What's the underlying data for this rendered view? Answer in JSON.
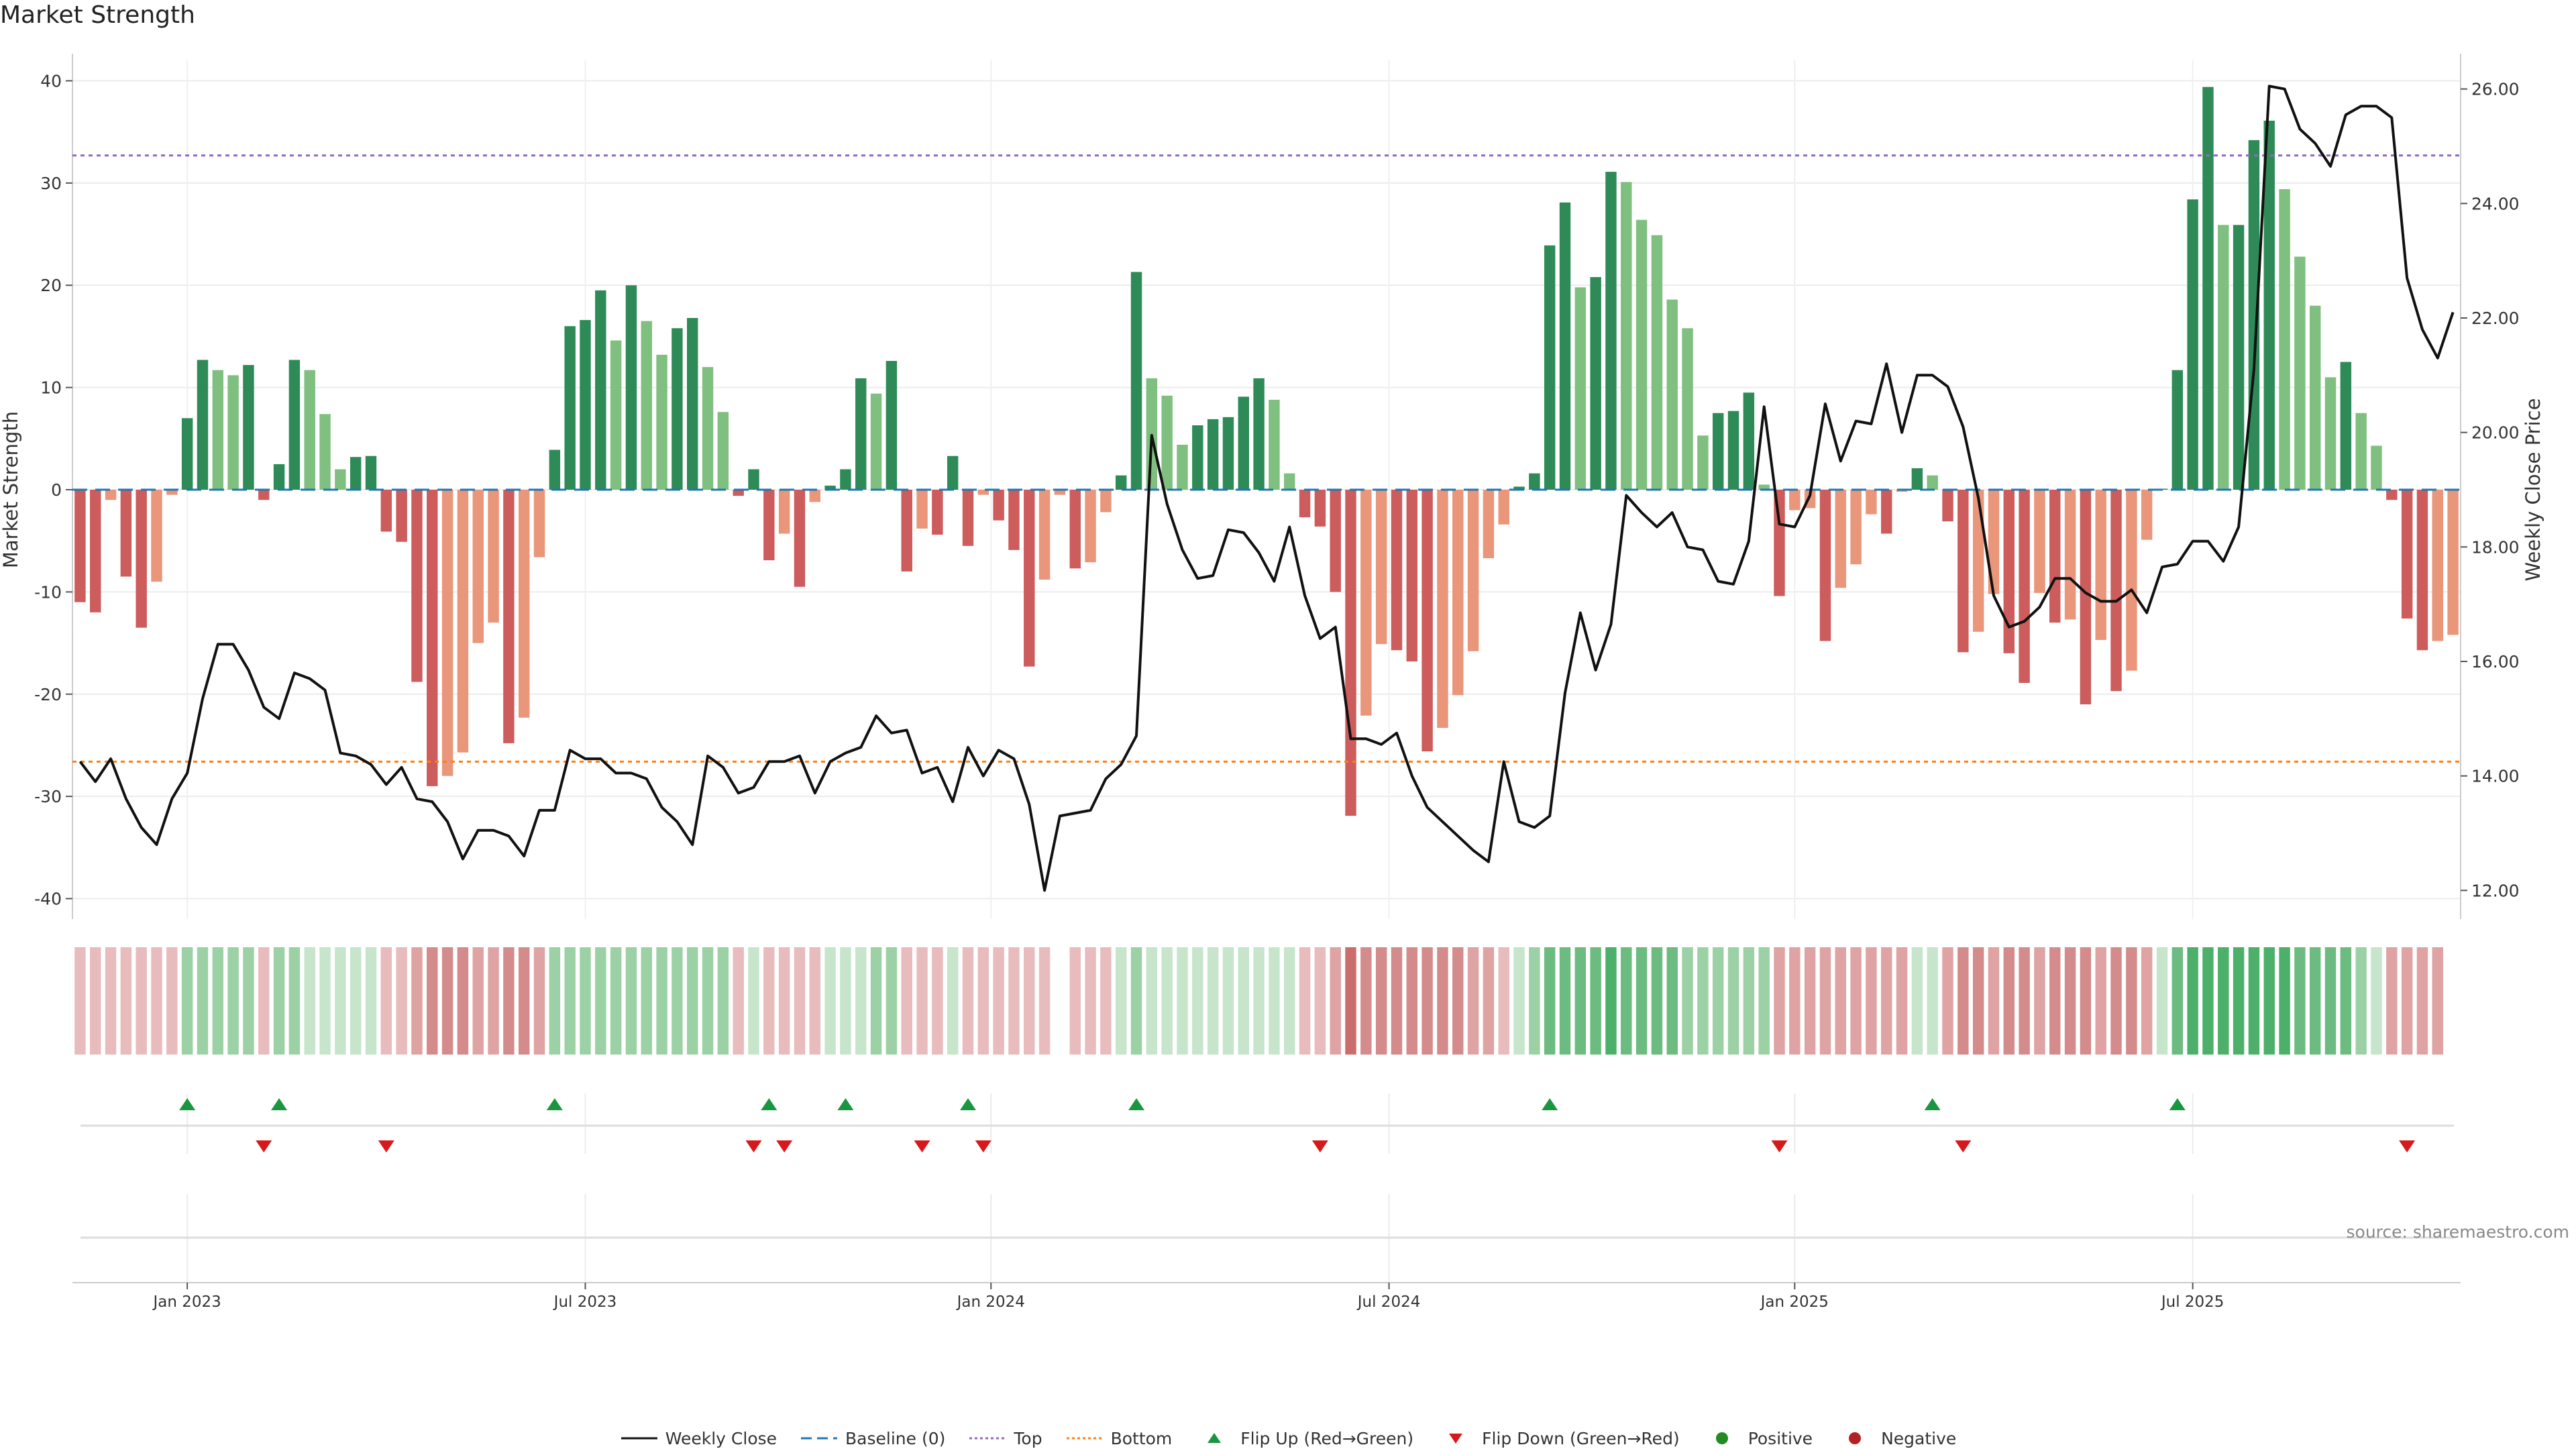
{
  "title": "Market Strength",
  "source": "source: sharemaestro.com",
  "colors": {
    "strong_green": "#2e8b57",
    "light_green": "#7fbf7f",
    "strong_red": "#cd5c5c",
    "light_red": "#e9967a",
    "price": "#111111",
    "baseline": "#1f77b4",
    "top": "#9467bd",
    "bottom": "#ff7f0e",
    "flip_up": "#1a9641",
    "flip_down": "#d7191c",
    "positive": "#228b22",
    "negative": "#b22222"
  },
  "chart_data": {
    "type": "bar",
    "title": "Market Strength",
    "ylabel": "Market Strength",
    "y2label": "Weekly Close Price",
    "ylim": [
      -42,
      42
    ],
    "y2lim": [
      11.5,
      26.5
    ],
    "yticks": [
      -40,
      -30,
      -20,
      -10,
      0,
      10,
      20,
      30,
      40
    ],
    "y2ticks": [
      "12.00",
      "14.00",
      "16.00",
      "18.00",
      "20.00",
      "22.00",
      "24.00",
      "26.00"
    ],
    "top_level": 32.7,
    "bottom_level": -26.6,
    "xticks": [
      {
        "label": "Jan 2023",
        "week": 7
      },
      {
        "label": "Jul 2023",
        "week": 33
      },
      {
        "label": "Jan 2024",
        "week": 59.5
      },
      {
        "label": "Jul 2024",
        "week": 85.5
      },
      {
        "label": "Jan 2025",
        "week": 112
      },
      {
        "label": "Jul 2025",
        "week": 138
      }
    ],
    "market_strength": [
      -11,
      -12,
      -1,
      -8.5,
      -13.5,
      -9,
      -0.5,
      7,
      12.7,
      11.7,
      11.2,
      12.2,
      -1,
      2.5,
      12.7,
      11.7,
      7.4,
      2,
      3.2,
      3.3,
      -4.1,
      -5.1,
      -18.8,
      -29,
      -28,
      -25.7,
      -15,
      -13,
      -24.8,
      -22.3,
      -6.6,
      3.9,
      16,
      16.6,
      19.5,
      14.6,
      20,
      16.5,
      13.2,
      15.8,
      16.8,
      12,
      7.6,
      -0.6,
      2,
      -6.9,
      -4.3,
      -9.5,
      -1.2,
      0.4,
      2,
      10.9,
      9.4,
      12.6,
      -8,
      -3.8,
      -4.4,
      3.3,
      -5.5,
      -0.5,
      -3,
      -5.9,
      -17.3,
      -8.8,
      -0.5,
      -7.7,
      -7.1,
      -2.2,
      1.4,
      21.3,
      10.9,
      9.2,
      4.4,
      6.3,
      6.9,
      7.1,
      9.1,
      10.9,
      8.8,
      1.6,
      -2.7,
      -3.6,
      -10,
      -31.9,
      -22.1,
      -15.1,
      -15.7,
      -16.8,
      -25.6,
      -23.3,
      -20.1,
      -15.8,
      -6.7,
      -3.4,
      0.3,
      1.6,
      23.9,
      28.1,
      19.8,
      20.8,
      31.1,
      30.1,
      26.4,
      24.9,
      18.6,
      15.8,
      5.3,
      7.5,
      7.7,
      9.5,
      0.5,
      -10.4,
      -2,
      -1.8,
      -14.8,
      -9.6,
      -7.3,
      -2.4,
      -4.3,
      -0.2,
      2.1,
      1.4,
      -3.1,
      -15.9,
      -13.9,
      -10.2,
      -16,
      -18.9,
      -10.1,
      -13,
      -12.7,
      -21,
      -14.7,
      -19.7,
      -17.7,
      -4.9,
      0.1,
      11.7,
      28.4,
      39.4,
      25.9,
      25.9,
      34.2,
      36.1,
      29.4,
      22.8,
      18,
      11,
      12.5,
      7.5,
      4.3,
      -1,
      -12.6,
      -15.7,
      -14.8,
      -14.2
    ],
    "weekly_close": [
      14.25,
      13.9,
      14.3,
      13.6,
      13.1,
      12.8,
      13.6,
      14.05,
      15.35,
      16.3,
      16.3,
      15.85,
      15.2,
      15,
      15.8,
      15.7,
      15.5,
      14.4,
      14.35,
      14.2,
      13.85,
      14.15,
      13.6,
      13.55,
      13.2,
      12.55,
      13.05,
      13.05,
      12.95,
      12.6,
      13.4,
      13.4,
      14.45,
      14.3,
      14.3,
      14.05,
      14.05,
      13.95,
      13.45,
      13.2,
      12.8,
      14.35,
      14.15,
      13.7,
      13.8,
      14.25,
      14.25,
      14.35,
      13.7,
      14.25,
      14.4,
      14.5,
      15.05,
      14.75,
      14.8,
      14.05,
      14.15,
      13.55,
      14.5,
      14.0,
      14.45,
      14.3,
      13.5,
      12.0,
      13.3,
      13.35,
      13.4,
      13.95,
      14.2,
      14.7,
      19.95,
      18.75,
      17.95,
      17.45,
      17.5,
      18.3,
      18.25,
      17.9,
      17.4,
      18.35,
      17.15,
      16.4,
      16.6,
      14.65,
      14.65,
      14.55,
      14.75,
      14.0,
      13.45,
      13.2,
      12.95,
      12.7,
      12.5,
      14.25,
      13.2,
      13.1,
      13.3,
      15.45,
      16.85,
      15.85,
      16.65,
      18.9,
      18.6,
      18.35,
      18.6,
      18.0,
      17.95,
      17.4,
      17.35,
      18.1,
      20.45,
      18.4,
      18.35,
      18.9,
      20.5,
      19.5,
      20.2,
      20.15,
      21.2,
      20.0,
      21.0,
      21.0,
      20.8,
      20.1,
      18.85,
      17.15,
      16.6,
      16.7,
      16.95,
      17.45,
      17.45,
      17.2,
      17.05,
      17.05,
      17.25,
      16.85,
      17.65,
      17.7,
      18.1,
      18.1,
      17.75,
      18.35,
      21.1,
      26.05,
      26.0,
      25.3,
      25.05,
      24.65,
      25.55,
      25.7,
      25.7,
      25.5,
      22.7,
      21.8,
      21.3,
      22.1
    ],
    "zones": [
      -1,
      -1,
      -1,
      -1,
      -1,
      -1,
      -1,
      2,
      2,
      2,
      2,
      2,
      -1,
      2,
      2,
      1,
      1,
      1,
      1,
      1,
      -1,
      -1,
      -2,
      -3,
      -3,
      -3,
      -2,
      -2,
      -3,
      -3,
      -2,
      2,
      2,
      2,
      2,
      2,
      2,
      2,
      2,
      2,
      2,
      2,
      2,
      -1,
      1,
      -1,
      -1,
      -1,
      -1,
      1,
      1,
      1,
      2,
      2,
      -1,
      -1,
      -1,
      1,
      -1,
      -1,
      -1,
      -1,
      -1,
      -1,
      0,
      -1,
      -1,
      -1,
      1,
      2,
      1,
      1,
      1,
      1,
      1,
      1,
      1,
      1,
      1,
      1,
      -1,
      -1,
      -2,
      -4,
      -3,
      -3,
      -3,
      -3,
      -3,
      -3,
      -3,
      -2,
      -2,
      -1,
      1,
      2,
      3,
      3,
      3,
      3,
      4,
      3,
      3,
      3,
      3,
      2,
      2,
      2,
      2,
      2,
      2,
      -2,
      -2,
      -2,
      -2,
      -2,
      -2,
      -2,
      -2,
      -2,
      1,
      1,
      -2,
      -3,
      -3,
      -2,
      -3,
      -3,
      -2,
      -3,
      -3,
      -3,
      -2,
      -3,
      -3,
      -2,
      1,
      3,
      4,
      4,
      4,
      4,
      4,
      4,
      4,
      3,
      3,
      3,
      3,
      2,
      1,
      -2,
      -2,
      -2,
      -2
    ],
    "flip_up_weeks": [
      7,
      13,
      31,
      45,
      50,
      58,
      69,
      96,
      121,
      137
    ],
    "flip_down_weeks": [
      12,
      20,
      44,
      46,
      55,
      59,
      81,
      111,
      123,
      152
    ],
    "series": [
      {
        "name": "Market Strength",
        "type": "bar"
      },
      {
        "name": "Weekly Close",
        "type": "line"
      }
    ]
  },
  "legend": [
    {
      "label": "Weekly Close",
      "symbol": "line-solid",
      "color": "#111111"
    },
    {
      "label": "Baseline (0)",
      "symbol": "line-dashed",
      "color": "#1f77b4"
    },
    {
      "label": "Top",
      "symbol": "line-dotted",
      "color": "#9467bd"
    },
    {
      "label": "Bottom",
      "symbol": "line-dotted",
      "color": "#ff7f0e"
    },
    {
      "label": "Flip Up (Red→Green)",
      "symbol": "triangle-up-icon",
      "color": "#1a9641"
    },
    {
      "label": "Flip Down (Green→Red)",
      "symbol": "triangle-down-icon",
      "color": "#d7191c"
    },
    {
      "label": "Positive",
      "symbol": "circle-icon",
      "color": "#228b22"
    },
    {
      "label": "Negative",
      "symbol": "circle-icon",
      "color": "#b22222"
    }
  ]
}
